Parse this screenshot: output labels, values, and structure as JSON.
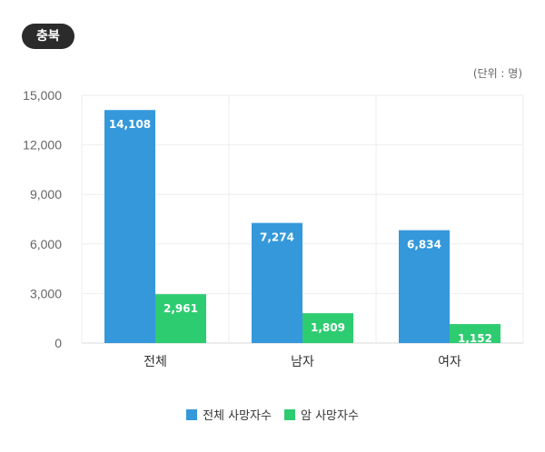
{
  "region": "충북",
  "unit": "(단위 : 명)",
  "chart_data": {
    "type": "bar",
    "categories": [
      "전체",
      "남자",
      "여자"
    ],
    "series": [
      {
        "name": "전체 사망자수",
        "values": [
          14108,
          7274,
          6834
        ],
        "labels": [
          "14,108",
          "7,274",
          "6,834"
        ],
        "color": "#3498db"
      },
      {
        "name": "암 사망자수",
        "values": [
          2961,
          1809,
          1152
        ],
        "labels": [
          "2,961",
          "1,809",
          "1,152"
        ],
        "color": "#2ecc71"
      }
    ],
    "ylim": [
      0,
      15000
    ],
    "yticks": [
      0,
      3000,
      6000,
      9000,
      12000,
      15000
    ],
    "ytick_labels": [
      "0",
      "3,000",
      "6,000",
      "9,000",
      "12,000",
      "15,000"
    ],
    "grid": true,
    "legend": "bottom-center"
  }
}
